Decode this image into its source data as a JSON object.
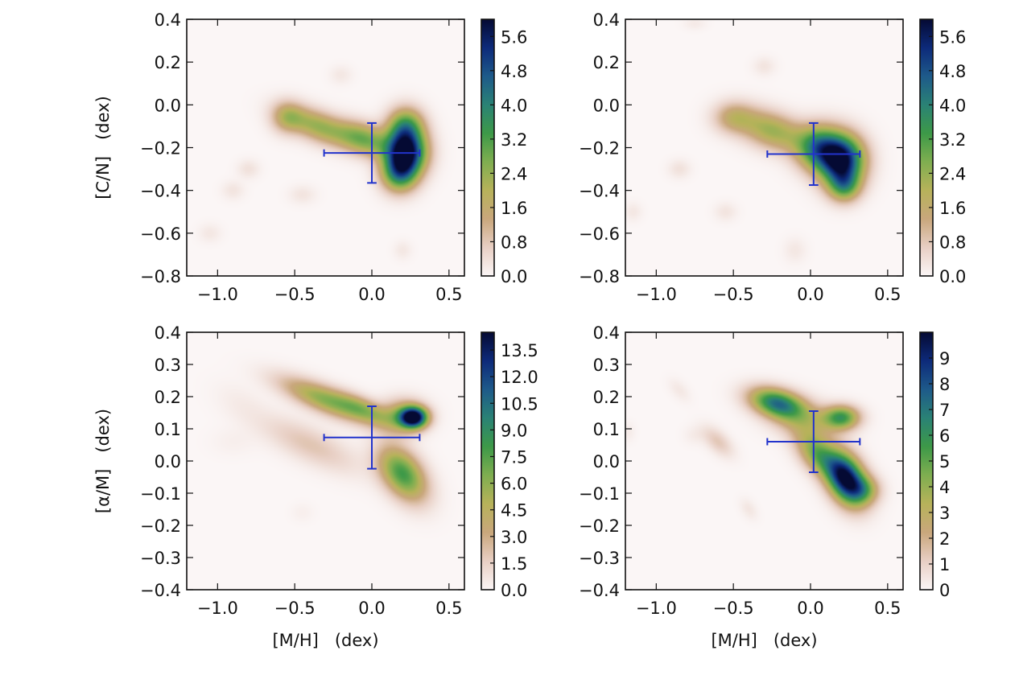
{
  "chart_data": [
    {
      "type": "heatmap",
      "panel": "top-left",
      "title": "",
      "xlabel": "",
      "ylabel": "[C/N]   (dex)",
      "xlim": [
        -1.2,
        0.6
      ],
      "ylim": [
        -0.8,
        0.4
      ],
      "xticks": [
        -1.0,
        -0.5,
        0.0,
        0.5
      ],
      "xtick_labels": [
        "−1.0",
        "−0.5",
        "0.0",
        "0.5"
      ],
      "yticks": [
        0.4,
        0.2,
        0.0,
        -0.2,
        -0.4,
        -0.6,
        -0.8
      ],
      "ytick_labels": [
        "0.4",
        "0.2",
        "0.0",
        "−0.2",
        "−0.4",
        "−0.6",
        "−0.8"
      ],
      "colorbar": {
        "range": [
          0.0,
          6.0
        ],
        "ticks": [
          0.0,
          0.8,
          1.6,
          2.4,
          3.2,
          4.0,
          4.8,
          5.6
        ],
        "tick_labels": [
          "0.0",
          "0.8",
          "1.6",
          "2.4",
          "3.2",
          "4.0",
          "4.8",
          "5.6"
        ]
      },
      "density_peaks": [
        {
          "x": 0.22,
          "y": -0.22,
          "sx": 0.09,
          "sy": 0.07,
          "amp": 6.0,
          "rot": 0
        },
        {
          "x": 0.18,
          "y": -0.32,
          "sx": 0.08,
          "sy": 0.06,
          "amp": 3.5,
          "rot": 0
        },
        {
          "x": 0.22,
          "y": -0.1,
          "sx": 0.08,
          "sy": 0.06,
          "amp": 3.0,
          "rot": 0
        },
        {
          "x": -0.05,
          "y": -0.16,
          "sx": 0.12,
          "sy": 0.05,
          "amp": 2.6,
          "rot": -0.2
        },
        {
          "x": -0.35,
          "y": -0.1,
          "sx": 0.15,
          "sy": 0.05,
          "amp": 2.3,
          "rot": -0.25
        },
        {
          "x": -0.55,
          "y": -0.06,
          "sx": 0.07,
          "sy": 0.05,
          "amp": 1.5,
          "rot": 0
        },
        {
          "x": -0.8,
          "y": -0.3,
          "sx": 0.05,
          "sy": 0.03,
          "amp": 0.35,
          "rot": 0
        },
        {
          "x": -0.9,
          "y": -0.4,
          "sx": 0.05,
          "sy": 0.03,
          "amp": 0.3,
          "rot": 0
        },
        {
          "x": -0.45,
          "y": -0.42,
          "sx": 0.06,
          "sy": 0.03,
          "amp": 0.3,
          "rot": 0
        },
        {
          "x": -1.05,
          "y": -0.6,
          "sx": 0.05,
          "sy": 0.03,
          "amp": 0.25,
          "rot": 0
        },
        {
          "x": -0.2,
          "y": 0.14,
          "sx": 0.05,
          "sy": 0.03,
          "amp": 0.25,
          "rot": 0
        },
        {
          "x": 0.2,
          "y": -0.68,
          "sx": 0.04,
          "sy": 0.03,
          "amp": 0.25,
          "rot": 0
        }
      ],
      "error_bar": {
        "x": 0.0,
        "y": -0.225,
        "xerr": 0.31,
        "yerr": 0.14,
        "color": "#2233cc"
      }
    },
    {
      "type": "heatmap",
      "panel": "top-right",
      "title": "",
      "xlabel": "",
      "ylabel": "",
      "xlim": [
        -1.2,
        0.6
      ],
      "ylim": [
        -0.8,
        0.4
      ],
      "xticks": [
        -1.0,
        -0.5,
        0.0,
        0.5
      ],
      "xtick_labels": [
        "−1.0",
        "−0.5",
        "0.0",
        "0.5"
      ],
      "yticks": [
        0.4,
        0.2,
        0.0,
        -0.2,
        -0.4,
        -0.6,
        -0.8
      ],
      "ytick_labels": [
        "0.4",
        "0.2",
        "0.0",
        "−0.2",
        "−0.4",
        "−0.6",
        "−0.8"
      ],
      "colorbar": {
        "range": [
          0.0,
          6.0
        ],
        "ticks": [
          0.0,
          0.8,
          1.6,
          2.4,
          3.2,
          4.0,
          4.8,
          5.6
        ],
        "tick_labels": [
          "0.0",
          "0.8",
          "1.6",
          "2.4",
          "3.2",
          "4.0",
          "4.8",
          "5.6"
        ]
      },
      "density_peaks": [
        {
          "x": 0.2,
          "y": -0.26,
          "sx": 0.1,
          "sy": 0.08,
          "amp": 6.0,
          "rot": 0
        },
        {
          "x": 0.05,
          "y": -0.2,
          "sx": 0.1,
          "sy": 0.07,
          "amp": 3.5,
          "rot": 0
        },
        {
          "x": 0.22,
          "y": -0.38,
          "sx": 0.07,
          "sy": 0.05,
          "amp": 2.5,
          "rot": 0
        },
        {
          "x": -0.25,
          "y": -0.12,
          "sx": 0.15,
          "sy": 0.06,
          "amp": 2.3,
          "rot": -0.2
        },
        {
          "x": -0.5,
          "y": -0.06,
          "sx": 0.09,
          "sy": 0.05,
          "amp": 1.4,
          "rot": 0
        },
        {
          "x": -0.85,
          "y": -0.3,
          "sx": 0.05,
          "sy": 0.03,
          "amp": 0.35,
          "rot": 0
        },
        {
          "x": -0.55,
          "y": -0.5,
          "sx": 0.05,
          "sy": 0.03,
          "amp": 0.3,
          "rot": 0
        },
        {
          "x": -0.3,
          "y": 0.18,
          "sx": 0.05,
          "sy": 0.03,
          "amp": 0.3,
          "rot": 0
        },
        {
          "x": -0.1,
          "y": -0.68,
          "sx": 0.05,
          "sy": 0.04,
          "amp": 0.25,
          "rot": 0
        },
        {
          "x": -1.15,
          "y": -0.5,
          "sx": 0.04,
          "sy": 0.03,
          "amp": 0.25,
          "rot": 0
        },
        {
          "x": -0.75,
          "y": 0.38,
          "sx": 0.05,
          "sy": 0.02,
          "amp": 0.2,
          "rot": 0
        }
      ],
      "error_bar": {
        "x": 0.02,
        "y": -0.23,
        "xerr": 0.3,
        "yerr": 0.145,
        "color": "#2233cc"
      }
    },
    {
      "type": "heatmap",
      "panel": "bottom-left",
      "title": "",
      "xlabel": "[M/H]   (dex)",
      "ylabel": "[α/M]   (dex)",
      "xlim": [
        -1.2,
        0.6
      ],
      "ylim": [
        -0.4,
        0.4
      ],
      "xticks": [
        -1.0,
        -0.5,
        0.0,
        0.5
      ],
      "xtick_labels": [
        "−1.0",
        "−0.5",
        "0.0",
        "0.5"
      ],
      "yticks": [
        0.4,
        0.3,
        0.2,
        0.1,
        0.0,
        -0.1,
        -0.2,
        -0.3,
        -0.4
      ],
      "ytick_labels": [
        "0.4",
        "0.3",
        "0.2",
        "0.1",
        "0.0",
        "−0.1",
        "−0.2",
        "−0.3",
        "−0.4"
      ],
      "colorbar": {
        "range": [
          0.0,
          14.5
        ],
        "ticks": [
          0.0,
          1.5,
          3.0,
          4.5,
          6.0,
          7.5,
          9.0,
          10.5,
          12.0,
          13.5
        ],
        "tick_labels": [
          "0.0",
          "1.5",
          "3.0",
          "4.5",
          "6.0",
          "7.5",
          "9.0",
          "10.5",
          "12.0",
          "13.5"
        ]
      },
      "density_peaks": [
        {
          "x": 0.27,
          "y": 0.135,
          "sx": 0.06,
          "sy": 0.022,
          "amp": 14.5,
          "rot": 0
        },
        {
          "x": 0.2,
          "y": 0.14,
          "sx": 0.1,
          "sy": 0.035,
          "amp": 5.0,
          "rot": 0
        },
        {
          "x": -0.3,
          "y": 0.19,
          "sx": 0.2,
          "sy": 0.03,
          "amp": 6.0,
          "rot": -0.18
        },
        {
          "x": -0.05,
          "y": 0.16,
          "sx": 0.12,
          "sy": 0.025,
          "amp": 4.0,
          "rot": -0.18
        },
        {
          "x": 0.2,
          "y": -0.04,
          "sx": 0.11,
          "sy": 0.05,
          "amp": 8.0,
          "rot": -0.3
        },
        {
          "x": -0.4,
          "y": 0.05,
          "sx": 0.22,
          "sy": 0.04,
          "amp": 2.0,
          "rot": -0.2
        },
        {
          "x": -0.85,
          "y": 0.18,
          "sx": 0.12,
          "sy": 0.04,
          "amp": 0.4,
          "rot": -0.2
        },
        {
          "x": -0.9,
          "y": 0.06,
          "sx": 0.1,
          "sy": 0.03,
          "amp": 0.3,
          "rot": 0
        },
        {
          "x": -0.45,
          "y": -0.16,
          "sx": 0.05,
          "sy": 0.02,
          "amp": 0.3,
          "rot": 0
        }
      ],
      "error_bar": {
        "x": 0.0,
        "y": 0.073,
        "xerr": 0.31,
        "yerr": 0.097,
        "color": "#2233cc"
      }
    },
    {
      "type": "heatmap",
      "panel": "bottom-right",
      "title": "",
      "xlabel": "[M/H]   (dex)",
      "ylabel": "",
      "xlim": [
        -1.2,
        0.6
      ],
      "ylim": [
        -0.4,
        0.4
      ],
      "xticks": [
        -1.0,
        -0.5,
        0.0,
        0.5
      ],
      "xtick_labels": [
        "−1.0",
        "−0.5",
        "0.0",
        "0.5"
      ],
      "yticks": [
        0.4,
        0.3,
        0.2,
        0.1,
        0.0,
        -0.1,
        -0.2,
        -0.3,
        -0.4
      ],
      "ytick_labels": [
        "0.4",
        "0.3",
        "0.2",
        "0.1",
        "0.0",
        "−0.1",
        "−0.2",
        "−0.3",
        "−0.4"
      ],
      "colorbar": {
        "range": [
          0,
          10
        ],
        "ticks": [
          0,
          1,
          2,
          3,
          4,
          5,
          6,
          7,
          8,
          9
        ],
        "tick_labels": [
          "0",
          "1",
          "2",
          "3",
          "4",
          "5",
          "6",
          "7",
          "8",
          "9"
        ]
      },
      "density_peaks": [
        {
          "x": 0.23,
          "y": -0.055,
          "sx": 0.09,
          "sy": 0.05,
          "amp": 10.0,
          "rot": -0.3
        },
        {
          "x": 0.05,
          "y": 0.02,
          "sx": 0.1,
          "sy": 0.04,
          "amp": 4.5,
          "rot": -0.3
        },
        {
          "x": -0.22,
          "y": 0.18,
          "sx": 0.12,
          "sy": 0.03,
          "amp": 6.5,
          "rot": -0.1
        },
        {
          "x": 0.2,
          "y": 0.135,
          "sx": 0.08,
          "sy": 0.025,
          "amp": 5.5,
          "rot": 0
        },
        {
          "x": -0.05,
          "y": 0.13,
          "sx": 0.15,
          "sy": 0.04,
          "amp": 2.5,
          "rot": -0.1
        },
        {
          "x": 0.35,
          "y": -0.09,
          "sx": 0.07,
          "sy": 0.03,
          "amp": 3.0,
          "rot": 0
        },
        {
          "x": -0.6,
          "y": 0.06,
          "sx": 0.07,
          "sy": 0.025,
          "amp": 1.3,
          "rot": -0.3
        },
        {
          "x": -0.85,
          "y": 0.22,
          "sx": 0.05,
          "sy": 0.02,
          "amp": 0.4,
          "rot": -0.3
        },
        {
          "x": -0.75,
          "y": 0.08,
          "sx": 0.05,
          "sy": 0.02,
          "amp": 0.3,
          "rot": 0
        },
        {
          "x": -0.4,
          "y": -0.15,
          "sx": 0.04,
          "sy": 0.02,
          "amp": 0.45,
          "rot": -0.3
        },
        {
          "x": -1.18,
          "y": 0.09,
          "sx": 0.03,
          "sy": 0.02,
          "amp": 0.3,
          "rot": 0
        }
      ],
      "error_bar": {
        "x": 0.02,
        "y": 0.06,
        "xerr": 0.3,
        "yerr": 0.095,
        "color": "#2233cc"
      }
    }
  ],
  "colormap": {
    "name": "gist_earth_r",
    "stops": [
      "#fbf6f6",
      "#e8cfc4",
      "#c9a77c",
      "#b7b25a",
      "#7fae50",
      "#3d9948",
      "#2a8275",
      "#1e5a8a",
      "#0d2a7a",
      "#050a33"
    ]
  }
}
